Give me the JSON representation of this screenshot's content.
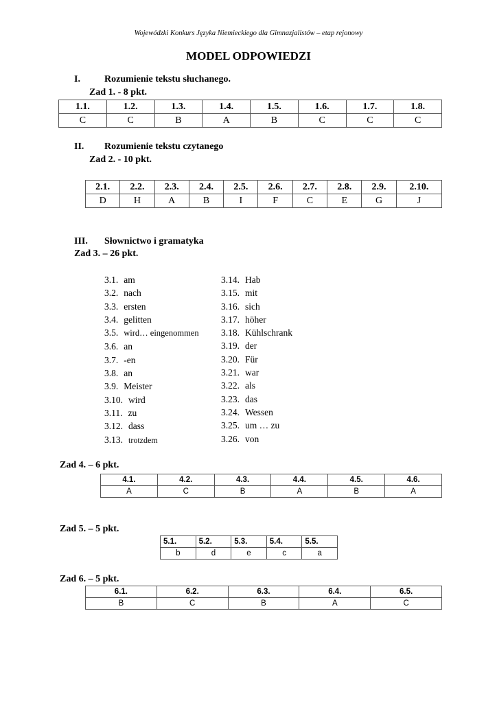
{
  "header": "Wojewódzki Konkurs Języka Niemieckiego dla Gimnazjalistów – etap rejonowy",
  "title": "MODEL ODPOWIEDZI",
  "s1": {
    "num": "I.",
    "title": "Rozumienie tekstu słuchanego.",
    "zad": "Zad 1. -  8 pkt.",
    "head": [
      "1.1.",
      "1.2.",
      "1.3.",
      "1.4.",
      "1.5.",
      "1.6.",
      "1.7.",
      "1.8."
    ],
    "ans": [
      "C",
      "C",
      "B",
      "A",
      "B",
      "C",
      "C",
      "C"
    ]
  },
  "s2": {
    "num": "II.",
    "title": "Rozumienie tekstu czytanego",
    "zad": "Zad 2. - 10 pkt.",
    "head": [
      "2.1.",
      "2.2.",
      "2.3.",
      "2.4.",
      "2.5.",
      "2.6.",
      "2.7.",
      "2.8.",
      "2.9.",
      "2.10."
    ],
    "ans": [
      "D",
      "H",
      "A",
      "B",
      "I",
      "F",
      "C",
      "E",
      "G",
      "J"
    ]
  },
  "s3": {
    "num": "III.",
    "title": "Słownictwo i gramatyka",
    "zad": "Zad 3. – 26 pkt.",
    "left": [
      [
        "3.1.",
        "am"
      ],
      [
        "3.2.",
        "nach"
      ],
      [
        "3.3.",
        "ersten"
      ],
      [
        "3.4.",
        "gelitten"
      ],
      [
        "3.5.",
        "wird… eingenommen"
      ],
      [
        "3.6.",
        "an"
      ],
      [
        "3.7.",
        "-en"
      ],
      [
        "3.8.",
        "an"
      ],
      [
        "3.9.",
        "Meister"
      ],
      [
        "3.10.",
        "wird"
      ],
      [
        "3.11.",
        "zu"
      ],
      [
        "3.12.",
        "dass"
      ],
      [
        "3.13.",
        "trotzdem"
      ]
    ],
    "right": [
      [
        "3.14.",
        "Hab"
      ],
      [
        "3.15.",
        "mit"
      ],
      [
        "3.16.",
        "sich"
      ],
      [
        "3.17.",
        "höher"
      ],
      [
        "3.18.",
        "Kühlschrank"
      ],
      [
        "3.19.",
        "der"
      ],
      [
        "3.20.",
        "Für"
      ],
      [
        "3.21.",
        "war"
      ],
      [
        "3.22.",
        "als"
      ],
      [
        "3.23.",
        "das"
      ],
      [
        "3.24.",
        "Wessen"
      ],
      [
        "3.25.",
        "um … zu"
      ],
      [
        "3.26.",
        "von"
      ]
    ]
  },
  "s4": {
    "zad": "Zad 4. –  6 pkt.",
    "head": [
      "4.1.",
      "4.2.",
      "4.3.",
      "4.4.",
      "4.5.",
      "4.6."
    ],
    "ans": [
      "A",
      "C",
      "B",
      "A",
      "B",
      "A"
    ]
  },
  "s5": {
    "zad": "Zad 5. –  5 pkt.",
    "head": [
      "5.1.",
      "5.2.",
      "5.3.",
      "5.4.",
      "5.5."
    ],
    "ans": [
      "b",
      "d",
      "e",
      "c",
      "a"
    ]
  },
  "s6": {
    "zad": "Zad 6. – 5 pkt.",
    "head": [
      "6.1.",
      "6.2.",
      "6.3.",
      "6.4.",
      "6.5."
    ],
    "ans": [
      "B",
      "C",
      "B",
      "A",
      "C"
    ]
  }
}
